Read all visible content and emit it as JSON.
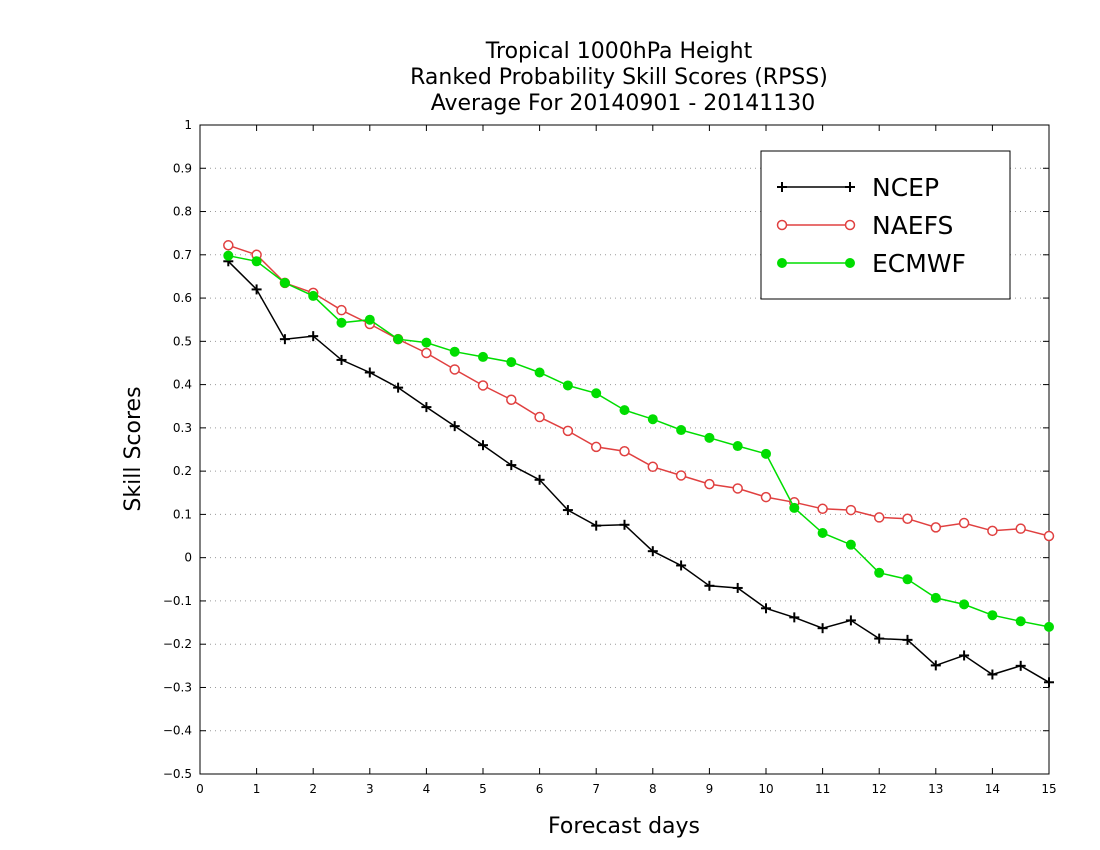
{
  "chart_data": {
    "type": "line",
    "title_lines": [
      "Tropical 1000hPa Height",
      "Ranked Probability Skill Scores (RPSS)",
      "Average For 20140901 - 20141130"
    ],
    "xlabel": "Forecast days",
    "ylabel": "Skill Scores",
    "xlim": [
      0,
      15
    ],
    "ylim": [
      -0.5,
      1
    ],
    "xticks": [
      "0",
      "1",
      "2",
      "3",
      "4",
      "5",
      "6",
      "7",
      "8",
      "9",
      "10",
      "11",
      "12",
      "13",
      "14",
      "15"
    ],
    "yticks": [
      "1",
      "0.9",
      "0.8",
      "0.7",
      "0.6",
      "0.5",
      "0.4",
      "0.3",
      "0.2",
      "0.1",
      "0",
      "−0.1",
      "−0.2",
      "−0.3",
      "−0.4",
      "−0.5"
    ],
    "grid": "horizontal-dotted",
    "legend_position": "top-right",
    "x": [
      0.5,
      1,
      1.5,
      2,
      2.5,
      3,
      3.5,
      4,
      4.5,
      5,
      5.5,
      6,
      6.5,
      7,
      7.5,
      8,
      8.5,
      9,
      9.5,
      10,
      10.5,
      11,
      11.5,
      12,
      12.5,
      13,
      13.5,
      14,
      14.5,
      15
    ],
    "series": [
      {
        "name": "NCEP",
        "color": "#000000",
        "marker": "plus",
        "values": [
          0.685,
          0.62,
          0.505,
          0.512,
          0.457,
          0.428,
          0.393,
          0.348,
          0.304,
          0.26,
          0.214,
          0.18,
          0.11,
          0.074,
          0.076,
          0.015,
          -0.018,
          -0.065,
          -0.07,
          -0.117,
          -0.138,
          -0.163,
          -0.145,
          -0.187,
          -0.19,
          -0.249,
          -0.226,
          -0.27,
          -0.25,
          -0.288
        ]
      },
      {
        "name": "NAEFS",
        "color": "#e04040",
        "marker": "open-circle",
        "values": [
          0.722,
          0.7,
          0.635,
          0.612,
          0.572,
          0.54,
          0.505,
          0.473,
          0.435,
          0.398,
          0.365,
          0.325,
          0.293,
          0.256,
          0.246,
          0.21,
          0.19,
          0.17,
          0.16,
          0.14,
          0.128,
          0.113,
          0.11,
          0.093,
          0.09,
          0.07,
          0.08,
          0.062,
          0.067,
          0.05
        ]
      },
      {
        "name": "ECMWF",
        "color": "#00dd00",
        "marker": "filled-circle",
        "values": [
          0.698,
          0.685,
          0.635,
          0.605,
          0.543,
          0.55,
          0.505,
          0.497,
          0.476,
          0.464,
          0.452,
          0.428,
          0.398,
          0.38,
          0.341,
          0.32,
          0.295,
          0.277,
          0.258,
          0.24,
          0.115,
          0.057,
          0.03,
          -0.035,
          -0.05,
          -0.093,
          -0.108,
          -0.133,
          -0.147,
          -0.16
        ]
      }
    ]
  }
}
